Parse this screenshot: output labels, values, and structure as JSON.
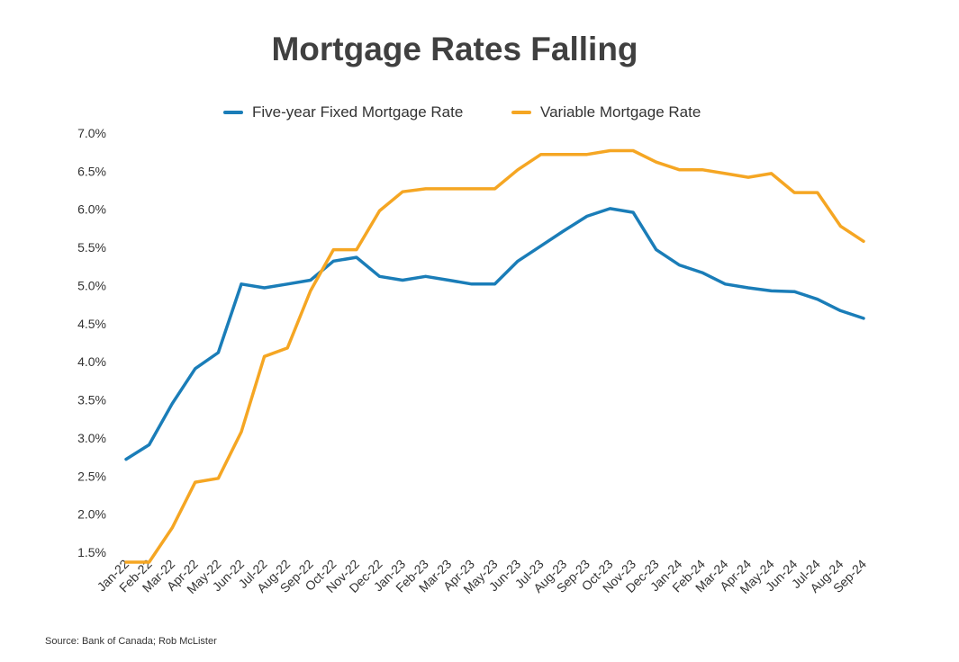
{
  "chart_data": {
    "type": "line",
    "title": "Mortgage Rates Falling",
    "source": "Source: Bank of Canada; Rob McLister",
    "categories": [
      "Jan-22",
      "Feb-22",
      "Mar-22",
      "Apr-22",
      "May-22",
      "Jun-22",
      "Jul-22",
      "Aug-22",
      "Sep-22",
      "Oct-22",
      "Nov-22",
      "Dec-22",
      "Jan-23",
      "Feb-23",
      "Mar-23",
      "Apr-23",
      "May-23",
      "Jun-23",
      "Jul-23",
      "Aug-23",
      "Sep-23",
      "Oct-23",
      "Nov-23",
      "Dec-23",
      "Jan-24",
      "Feb-24",
      "Mar-24",
      "Apr-24",
      "May-24",
      "Jun-24",
      "Jul-24",
      "Aug-24",
      "Sep-24"
    ],
    "series": [
      {
        "name": "Five-year Fixed Mortgage Rate",
        "color": "#1a7db8",
        "values": [
          2.72,
          2.91,
          3.45,
          3.91,
          4.12,
          5.02,
          4.97,
          5.02,
          5.07,
          5.32,
          5.37,
          5.12,
          5.07,
          5.12,
          5.07,
          5.02,
          5.02,
          5.32,
          5.52,
          5.72,
          5.91,
          6.01,
          5.96,
          5.47,
          5.27,
          5.17,
          5.02,
          4.97,
          4.93,
          4.92,
          4.82,
          4.67,
          4.57
        ]
      },
      {
        "name": "Variable Mortgage Rate",
        "color": "#f5a623",
        "values": [
          1.37,
          1.37,
          1.82,
          2.42,
          2.47,
          3.08,
          4.07,
          4.18,
          4.93,
          5.47,
          5.47,
          5.98,
          6.23,
          6.27,
          6.27,
          6.27,
          6.27,
          6.52,
          6.72,
          6.72,
          6.72,
          6.77,
          6.77,
          6.62,
          6.52,
          6.52,
          6.47,
          6.42,
          6.47,
          6.22,
          6.22,
          5.78,
          5.58
        ]
      }
    ],
    "y_ticks": [
      "1.5%",
      "2.0%",
      "2.5%",
      "3.0%",
      "3.5%",
      "4.0%",
      "4.5%",
      "5.0%",
      "5.5%",
      "6.0%",
      "6.5%",
      "7.0%"
    ],
    "ylim": [
      1.5,
      7.0
    ],
    "grid": false,
    "legend_position": "top-center"
  }
}
